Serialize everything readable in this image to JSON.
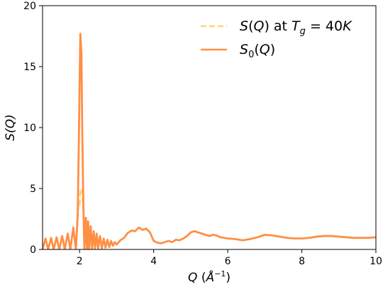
{
  "chart_data": {
    "type": "line",
    "title": "",
    "xlabel": "Q (Å⁻¹)",
    "ylabel": "S(Q)",
    "xlim": [
      1,
      10
    ],
    "ylim": [
      0,
      20
    ],
    "xticks": [
      2,
      4,
      6,
      8,
      10
    ],
    "yticks": [
      0,
      5,
      10,
      15,
      20
    ],
    "grid": false,
    "legend_position": "top-right",
    "series": [
      {
        "name": "S(Q) at T_g = 40K",
        "legend_label": "S(Q) at Tg = 40K",
        "color": "#ffd27f",
        "style": "dashed",
        "x": [
          1.0,
          1.08,
          1.15,
          1.23,
          1.3,
          1.38,
          1.45,
          1.53,
          1.6,
          1.68,
          1.75,
          1.83,
          1.9,
          1.95,
          1.98,
          2.0,
          2.02,
          2.05,
          2.07,
          2.1,
          2.13,
          2.17,
          2.2,
          2.23,
          2.26,
          2.3,
          2.34,
          2.38,
          2.42,
          2.46,
          2.5,
          2.55,
          2.6,
          2.65,
          2.7,
          2.75,
          2.8,
          2.85,
          2.9,
          2.95,
          3.0,
          3.1,
          3.2,
          3.3,
          3.4,
          3.5,
          3.6,
          3.7,
          3.8,
          3.9,
          4.0,
          4.1,
          4.2,
          4.3,
          4.4,
          4.5,
          4.6,
          4.7,
          4.8,
          4.9,
          5.0,
          5.1,
          5.2,
          5.3,
          5.4,
          5.5,
          5.6,
          5.7,
          5.8,
          5.9,
          6.0,
          6.2,
          6.4,
          6.6,
          6.8,
          7.0,
          7.2,
          7.4,
          7.6,
          7.8,
          8.0,
          8.2,
          8.4,
          8.6,
          8.8,
          9.0,
          9.2,
          9.4,
          9.6,
          9.8,
          10.0
        ],
        "y": [
          0.0,
          0.9,
          0.0,
          0.95,
          0.0,
          1.0,
          0.0,
          1.1,
          0.0,
          1.3,
          0.0,
          1.7,
          0.0,
          2.5,
          4.0,
          3.5,
          4.8,
          5.0,
          4.6,
          3.0,
          0.0,
          2.4,
          0.0,
          2.2,
          0.0,
          1.9,
          0.0,
          1.5,
          0.1,
          1.3,
          0.1,
          1.1,
          0.1,
          0.9,
          0.15,
          0.8,
          0.2,
          0.7,
          0.3,
          0.6,
          0.4,
          0.75,
          0.95,
          1.35,
          1.55,
          1.5,
          1.8,
          1.6,
          1.7,
          1.4,
          0.7,
          0.55,
          0.5,
          0.6,
          0.7,
          0.6,
          0.8,
          0.75,
          0.9,
          1.1,
          1.4,
          1.5,
          1.4,
          1.3,
          1.2,
          1.1,
          1.2,
          1.15,
          1.0,
          0.95,
          0.9,
          0.85,
          0.75,
          0.85,
          1.0,
          1.2,
          1.15,
          1.05,
          0.95,
          0.9,
          0.9,
          0.95,
          1.05,
          1.1,
          1.1,
          1.05,
          1.0,
          0.95,
          0.95,
          0.95,
          1.0
        ]
      },
      {
        "name": "S_0(Q)",
        "legend_label": "S0(Q)",
        "color": "#ff8f45",
        "style": "solid",
        "x": [
          1.0,
          1.08,
          1.15,
          1.23,
          1.3,
          1.38,
          1.45,
          1.53,
          1.6,
          1.68,
          1.75,
          1.83,
          1.9,
          1.95,
          1.98,
          2.0,
          2.02,
          2.05,
          2.07,
          2.1,
          2.13,
          2.17,
          2.2,
          2.23,
          2.26,
          2.3,
          2.34,
          2.38,
          2.42,
          2.46,
          2.5,
          2.55,
          2.6,
          2.65,
          2.7,
          2.75,
          2.8,
          2.85,
          2.9,
          2.95,
          3.0,
          3.1,
          3.2,
          3.3,
          3.4,
          3.5,
          3.6,
          3.7,
          3.8,
          3.9,
          4.0,
          4.1,
          4.2,
          4.3,
          4.4,
          4.5,
          4.6,
          4.7,
          4.8,
          4.9,
          5.0,
          5.1,
          5.2,
          5.3,
          5.4,
          5.5,
          5.6,
          5.7,
          5.8,
          5.9,
          6.0,
          6.2,
          6.4,
          6.6,
          6.8,
          7.0,
          7.2,
          7.4,
          7.6,
          7.8,
          8.0,
          8.2,
          8.4,
          8.6,
          8.8,
          9.0,
          9.2,
          9.4,
          9.6,
          9.8,
          10.0
        ],
        "y": [
          0.0,
          0.9,
          0.0,
          0.95,
          0.0,
          1.0,
          0.0,
          1.1,
          0.0,
          1.3,
          0.0,
          1.8,
          0.0,
          3.0,
          9.0,
          13.5,
          17.7,
          16.0,
          10.0,
          4.0,
          0.0,
          2.6,
          0.0,
          2.3,
          0.0,
          1.9,
          0.0,
          1.5,
          0.1,
          1.3,
          0.1,
          1.1,
          0.1,
          0.9,
          0.15,
          0.8,
          0.2,
          0.7,
          0.3,
          0.6,
          0.4,
          0.75,
          0.95,
          1.35,
          1.55,
          1.5,
          1.8,
          1.6,
          1.7,
          1.4,
          0.7,
          0.55,
          0.5,
          0.6,
          0.7,
          0.6,
          0.8,
          0.75,
          0.9,
          1.1,
          1.4,
          1.5,
          1.4,
          1.3,
          1.2,
          1.1,
          1.2,
          1.15,
          1.0,
          0.95,
          0.9,
          0.85,
          0.75,
          0.85,
          1.0,
          1.2,
          1.15,
          1.05,
          0.95,
          0.9,
          0.9,
          0.95,
          1.05,
          1.1,
          1.1,
          1.05,
          1.0,
          0.95,
          0.95,
          0.95,
          1.0
        ]
      }
    ]
  }
}
